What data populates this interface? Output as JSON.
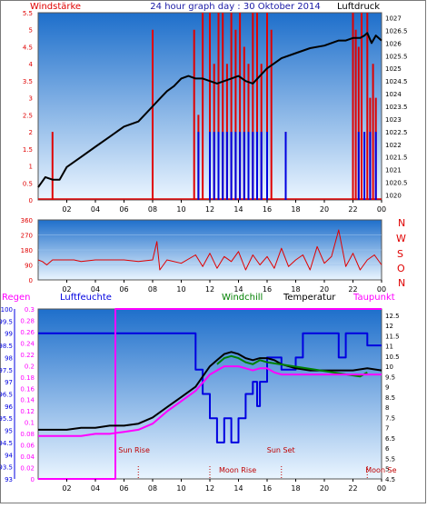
{
  "header": {
    "left_label": "Windstärke",
    "title": "24 hour graph day : 30 Oktober 2014",
    "right_label": "Luftdruck"
  },
  "colors": {
    "red": "#e00000",
    "blue": "#0000e0",
    "black": "#000000",
    "magenta": "#ff00ff",
    "green": "#008000",
    "navy": "#1a1aa6",
    "plot_top": "#1e6fcb",
    "plot_bottom": "#eaf5ff"
  },
  "x_ticks": [
    "02",
    "04",
    "06",
    "08",
    "10",
    "12",
    "14",
    "16",
    "18",
    "20",
    "22",
    "00"
  ],
  "chart_data": [
    {
      "type": "line",
      "panel": "wind_pressure",
      "x_unit": "hour",
      "xlim": [
        0,
        24
      ],
      "left_axis": {
        "label": "Windstärke",
        "ticks": [
          "0",
          "0.5",
          "1",
          "1.5",
          "2",
          "2.5",
          "3",
          "3.5",
          "4",
          "4.5",
          "5",
          "5.5"
        ],
        "ylim": [
          0,
          5.5
        ]
      },
      "right_axis": {
        "label": "Luftdruck",
        "ticks": [
          "1020",
          "1020.5",
          "1021",
          "1021.5",
          "1022",
          "1022.5",
          "1023",
          "1023.5",
          "1024",
          "1024.5",
          "1025",
          "1025.5",
          "1026",
          "1026.5",
          "1027"
        ],
        "ylim": [
          1019.8,
          1027.2
        ]
      },
      "pressure": {
        "x": [
          0,
          0.5,
          1.0,
          1.5,
          2.0,
          3.0,
          4.0,
          5.0,
          6.0,
          7.0,
          7.5,
          8.0,
          8.5,
          9.0,
          9.5,
          10.0,
          10.5,
          11.0,
          11.5,
          12.0,
          12.5,
          13.0,
          13.5,
          14.0,
          14.5,
          15.0,
          15.5,
          16.0,
          16.5,
          17.0,
          18.0,
          19.0,
          20.0,
          21.0,
          21.5,
          22.0,
          22.5,
          22.8,
          23.0,
          23.3,
          23.6,
          24.0
        ],
        "y": [
          1020.3,
          1020.7,
          1020.6,
          1020.6,
          1021.1,
          1021.5,
          1021.9,
          1022.3,
          1022.7,
          1022.9,
          1023.2,
          1023.5,
          1023.8,
          1024.1,
          1024.3,
          1024.6,
          1024.7,
          1024.6,
          1024.6,
          1024.5,
          1024.4,
          1024.5,
          1024.6,
          1024.7,
          1024.5,
          1024.4,
          1024.7,
          1025.0,
          1025.2,
          1025.4,
          1025.6,
          1025.8,
          1025.9,
          1026.1,
          1026.1,
          1026.2,
          1026.2,
          1026.3,
          1026.4,
          1026.0,
          1026.3,
          1026.1
        ]
      },
      "wind_speed": {
        "x": [
          1.0,
          8.0,
          10.9,
          11.2,
          11.5,
          12.0,
          12.3,
          12.6,
          12.9,
          13.2,
          13.5,
          13.8,
          14.1,
          14.4,
          14.7,
          15.0,
          15.3,
          15.6,
          16.0,
          16.3,
          17.3,
          22.0,
          22.2,
          22.4,
          22.6,
          23.0,
          23.2,
          23.4,
          23.6
        ],
        "y": [
          2.0,
          5.0,
          5.0,
          2.5,
          5.5,
          5.5,
          4.0,
          5.5,
          5.5,
          4.0,
          5.5,
          5.0,
          5.5,
          4.5,
          4.0,
          5.5,
          5.5,
          4.0,
          5.5,
          5.0,
          2.0,
          5.5,
          5.0,
          4.5,
          5.5,
          5.5,
          3.0,
          4.0,
          3.0
        ]
      },
      "wind_gust": {
        "x": [
          11.2,
          12.0,
          12.3,
          12.6,
          12.9,
          13.2,
          13.5,
          13.8,
          14.1,
          14.4,
          14.7,
          15.0,
          15.3,
          15.6,
          16.0,
          17.3,
          22.4,
          22.8,
          23.2,
          23.6
        ],
        "y": [
          2.0,
          2.0,
          2.0,
          2.0,
          2.0,
          2.0,
          2.0,
          2.0,
          2.0,
          2.0,
          2.0,
          2.0,
          2.0,
          2.0,
          2.0,
          2.0,
          2.0,
          2.0,
          2.0,
          2.0
        ]
      }
    },
    {
      "type": "line",
      "panel": "wind_direction",
      "x_unit": "hour",
      "xlim": [
        0,
        24
      ],
      "left_axis": {
        "ticks": [
          "0",
          "90",
          "180",
          "270",
          "360"
        ],
        "ylim": [
          0,
          360
        ]
      },
      "right_labels": [
        "N",
        "W",
        "S",
        "O",
        "N"
      ],
      "direction": {
        "x": [
          0,
          0.3,
          0.6,
          1.0,
          1.5,
          2.0,
          2.5,
          3.0,
          4.0,
          5.0,
          6.0,
          7.0,
          8.0,
          8.3,
          8.5,
          9.0,
          10.0,
          11.0,
          11.5,
          12.0,
          12.5,
          13.0,
          13.5,
          14.0,
          14.5,
          15.0,
          15.5,
          16.0,
          16.5,
          17.0,
          17.5,
          18.0,
          18.5,
          19.0,
          19.5,
          20.0,
          20.5,
          21.0,
          21.5,
          22.0,
          22.5,
          23.0,
          23.5,
          24.0
        ],
        "y": [
          120,
          110,
          90,
          120,
          120,
          120,
          120,
          110,
          120,
          120,
          120,
          110,
          120,
          230,
          60,
          120,
          100,
          150,
          80,
          160,
          70,
          140,
          110,
          170,
          60,
          150,
          90,
          140,
          70,
          190,
          80,
          120,
          150,
          60,
          200,
          100,
          140,
          300,
          80,
          160,
          60,
          120,
          150,
          90
        ]
      }
    },
    {
      "type": "line",
      "panel": "temperature_humidity",
      "x_unit": "hour",
      "xlim": [
        0,
        24
      ],
      "legend": [
        "Regen",
        "Luftfeuchte",
        "Windchill",
        "Temperatur",
        "Taupunkt"
      ],
      "left_axes": {
        "regen": {
          "label": "Regen",
          "ticks": [
            "0",
            "0.02",
            "0.04",
            "0.06",
            "0.08",
            "0.1",
            "0.12",
            "0.14",
            "0.16",
            "0.18",
            "0.2",
            "0.22",
            "0.24",
            "0.26",
            "0.28",
            "0.3"
          ],
          "ylim": [
            0,
            0.3
          ]
        },
        "luftfeuchte": {
          "label": "Luftfeuchte",
          "ticks": [
            "93",
            "93.5",
            "94",
            "94.5",
            "95",
            "95.5",
            "96",
            "96.5",
            "97",
            "97.5",
            "98",
            "98.5",
            "99",
            "99.5",
            "100"
          ],
          "ylim": [
            93,
            100
          ]
        }
      },
      "right_axis": {
        "label": "Temperatur",
        "ticks": [
          "4.5",
          "5",
          "5.5",
          "6",
          "6.5",
          "7",
          "7.5",
          "8",
          "8.5",
          "9",
          "9.5",
          "10",
          "10.5",
          "11",
          "11.5",
          "12",
          "12.5"
        ],
        "ylim": [
          4.5,
          12.8
        ]
      },
      "temperature": {
        "x": [
          0,
          1,
          2,
          3,
          4,
          5,
          6,
          7,
          8,
          9,
          10,
          11,
          11.5,
          12,
          12.5,
          13,
          13.5,
          14,
          14.5,
          15,
          15.5,
          16,
          16.5,
          17,
          18,
          19,
          20,
          21,
          22,
          23,
          24
        ],
        "y": [
          6.9,
          6.9,
          6.9,
          7.0,
          7.0,
          7.1,
          7.1,
          7.2,
          7.5,
          8.0,
          8.5,
          9.0,
          9.5,
          10.0,
          10.3,
          10.6,
          10.7,
          10.6,
          10.4,
          10.3,
          10.4,
          10.4,
          10.3,
          10.1,
          9.9,
          9.8,
          9.8,
          9.8,
          9.8,
          9.9,
          9.8
        ]
      },
      "dewpoint": {
        "x": [
          0,
          1,
          2,
          3,
          4,
          5,
          6,
          7,
          8,
          9,
          10,
          11,
          11.5,
          12,
          12.5,
          13,
          13.5,
          14,
          14.5,
          15,
          15.5,
          16,
          16.5,
          17,
          18,
          19,
          20,
          21,
          22,
          23,
          24
        ],
        "y": [
          6.6,
          6.6,
          6.6,
          6.6,
          6.7,
          6.7,
          6.8,
          6.9,
          7.2,
          7.8,
          8.3,
          8.8,
          9.2,
          9.6,
          9.8,
          10.0,
          10.0,
          10.0,
          9.9,
          9.8,
          9.9,
          9.9,
          9.7,
          9.6,
          9.6,
          9.6,
          9.6,
          9.6,
          9.6,
          9.6,
          9.6
        ]
      },
      "windchill": {
        "x": [
          12.5,
          13.0,
          13.5,
          14.0,
          14.5,
          15.0,
          15.5,
          16.0,
          22.5,
          23.0
        ],
        "y": [
          10.1,
          10.4,
          10.5,
          10.4,
          10.2,
          10.1,
          10.3,
          10.2,
          9.5,
          9.7
        ]
      },
      "humidity": {
        "x": [
          0,
          5.4,
          5.4,
          11.0,
          11.0,
          11.5,
          11.5,
          12.0,
          12.0,
          12.5,
          12.5,
          13.0,
          13.0,
          13.5,
          13.5,
          14.0,
          14.0,
          14.5,
          14.5,
          15.0,
          15.0,
          15.3,
          15.3,
          15.5,
          15.5,
          16.0,
          16.0,
          17.0,
          17.0,
          18.0,
          18.0,
          18.5,
          18.5,
          21.0,
          21.0,
          21.5,
          21.5,
          23.0,
          23.0,
          24.0
        ],
        "y": [
          99.0,
          99.0,
          99.0,
          99.0,
          97.5,
          97.5,
          96.5,
          96.5,
          95.5,
          95.5,
          94.5,
          94.5,
          95.5,
          95.5,
          94.5,
          94.5,
          95.5,
          95.5,
          96.5,
          96.5,
          97.0,
          97.0,
          96.0,
          96.0,
          97.0,
          97.0,
          98.0,
          98.0,
          97.5,
          97.5,
          98.0,
          98.0,
          99.0,
          99.0,
          98.0,
          98.0,
          99.0,
          99.0,
          98.5,
          98.5
        ]
      },
      "rain": {
        "x": [
          0,
          5.4,
          5.4,
          24
        ],
        "y": [
          0,
          0,
          0.3,
          0.3
        ]
      },
      "annotations": [
        {
          "label": "Sun Rise",
          "x": 7.0
        },
        {
          "label": "Moon Rise",
          "x": 12.0
        },
        {
          "label": "Sun Set",
          "x": 17.0
        },
        {
          "label": "Moon Se",
          "x": 23.0
        }
      ]
    }
  ]
}
